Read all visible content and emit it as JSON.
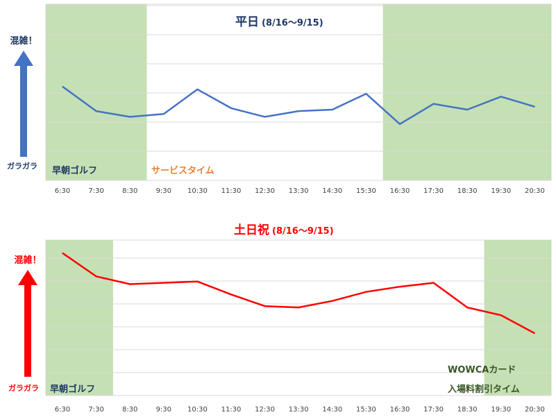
{
  "chart_data": [
    {
      "type": "line",
      "title": "平日",
      "subtitle": "(8/16〜9/15)",
      "categories": [
        "6:30",
        "7:30",
        "8:30",
        "9:30",
        "10:30",
        "11:30",
        "12:30",
        "13:30",
        "14:30",
        "15:30",
        "16:30",
        "17:30",
        "18:30",
        "19:30",
        "20:30"
      ],
      "series": [
        {
          "values": [
            64,
            47,
            43,
            45,
            62,
            49,
            43,
            47,
            48,
            59,
            38,
            52,
            48,
            57,
            50
          ],
          "color": "#4472c4"
        }
      ],
      "ylim": [
        0,
        120
      ],
      "grid": true,
      "y_indicator": {
        "top_label": "混雑！",
        "bottom_label": "ガラガラ",
        "color": "#4472c4",
        "label_color": "#1f3864"
      },
      "bands": [
        {
          "from": "6:30",
          "to": "8:30",
          "label": "早朝ゴルフ",
          "color": "#c5e0b4",
          "label_color": "#1f3864"
        },
        {
          "from": "16:30",
          "to": "20:30",
          "label": "",
          "color": "#c5e0b4"
        }
      ],
      "annotations": [
        {
          "text": "サービスタイム",
          "color": "#ed7d31"
        }
      ]
    },
    {
      "type": "line",
      "title": "土日祝",
      "subtitle": "(8/16〜9/15)",
      "categories": [
        "6:30",
        "7:30",
        "8:30",
        "9:30",
        "10:30",
        "11:30",
        "12:30",
        "13:30",
        "14:30",
        "15:30",
        "16:30",
        "17:30",
        "18:30",
        "19:30",
        "20:30"
      ],
      "series": [
        {
          "values": [
            110,
            92,
            86,
            87,
            88,
            78,
            69,
            68,
            73,
            80,
            84,
            87,
            68,
            62,
            48
          ],
          "color": "#ff0000"
        }
      ],
      "ylim": [
        0,
        120
      ],
      "grid": true,
      "y_indicator": {
        "top_label": "混雑！",
        "bottom_label": "ガラガラ",
        "color": "#ff0000",
        "label_color": "#ff0000"
      },
      "bands": [
        {
          "from": "6:30",
          "to": "7:30",
          "label": "早朝ゴルフ",
          "color": "#c5e0b4",
          "label_color": "#1f3864"
        },
        {
          "from": "19:30",
          "to": "20:30",
          "label": "",
          "color": "#c5e0b4"
        }
      ],
      "annotations": [
        {
          "text": "WOWCAカード",
          "color": "#375623"
        },
        {
          "text": "入場料割引タイム",
          "color": "#375623"
        }
      ]
    }
  ]
}
